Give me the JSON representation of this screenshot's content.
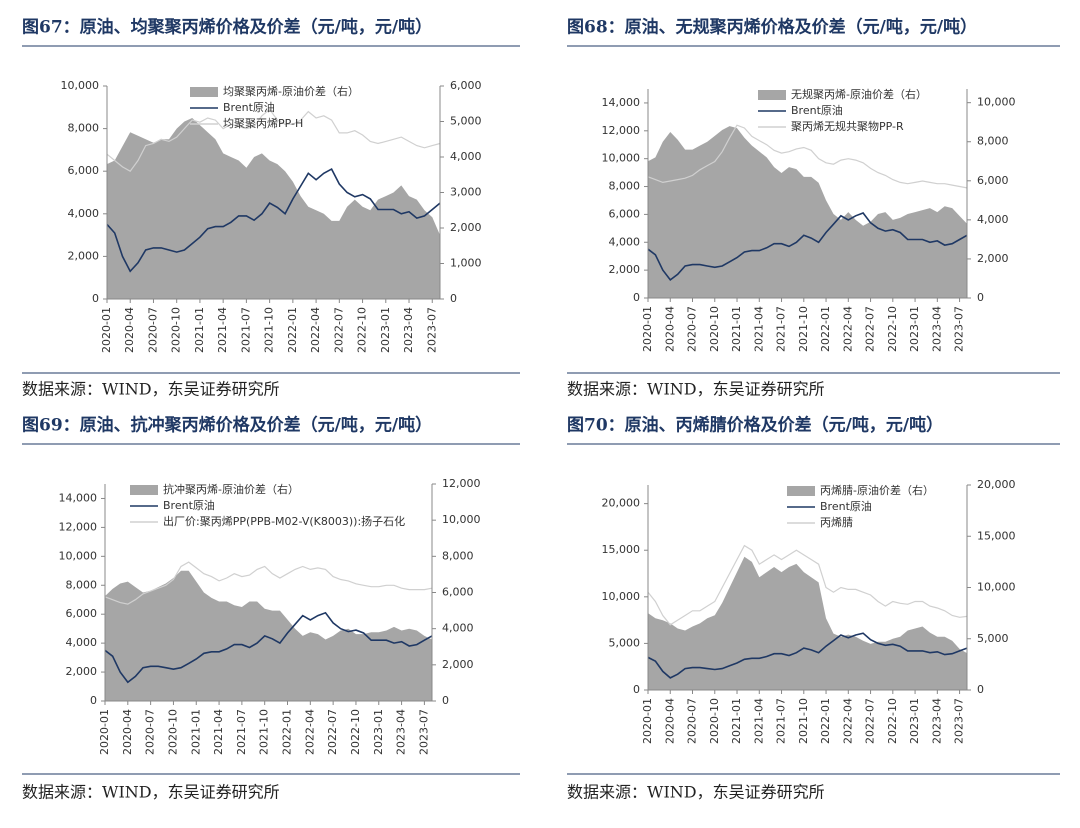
{
  "chart_data": [
    {
      "type": "combo",
      "title": "图67：原油、均聚聚丙烯价格及价差（元/吨，元/吨）",
      "source": "数据来源：WIND，东吴证券研究所",
      "legend": "upper left",
      "categories": [
        "2020-01",
        null,
        null,
        "2020-04",
        null,
        null,
        "2020-07",
        null,
        null,
        "2020-10",
        null,
        null,
        "2021-01",
        null,
        null,
        "2021-04",
        null,
        null,
        "2021-07",
        null,
        null,
        "2021-10",
        null,
        null,
        "2022-01",
        null,
        null,
        "2022-04",
        null,
        null,
        "2022-07",
        null,
        null,
        "2022-10",
        null,
        null,
        "2023-01",
        null,
        null,
        "2023-04",
        null,
        null,
        "2023-07",
        null
      ],
      "ylim": [
        0,
        10000
      ],
      "yticks": [
        0,
        {
          "value": 2000,
          "label": "2,000"
        },
        {
          "value": 4000,
          "label": "4,000"
        },
        {
          "value": 6000,
          "label": "6,000"
        },
        {
          "value": 8000,
          "label": "8,000"
        },
        {
          "value": 10000,
          "label": "10,000"
        }
      ],
      "y2lim": [
        0,
        6000
      ],
      "y2ticks": [
        0,
        {
          "value": 1000,
          "label": "1,000"
        },
        {
          "value": 2000,
          "label": "2,000"
        },
        {
          "value": 3000,
          "label": "3,000"
        },
        {
          "value": 4000,
          "label": "4,000"
        },
        {
          "value": 5000,
          "label": "5,000"
        },
        {
          "value": 6000,
          "label": "6,000"
        }
      ],
      "series": [
        {
          "name": "均聚聚丙烯-原油价差（右）",
          "style": "area",
          "axis": "y2",
          "color": "#a6a6a6",
          "values": [
            3800,
            3900,
            4300,
            4700,
            4600,
            4500,
            4400,
            4500,
            4500,
            4800,
            5000,
            5100,
            4900,
            4700,
            4500,
            4100,
            4000,
            3900,
            3700,
            4000,
            4100,
            3900,
            3800,
            3600,
            3300,
            2900,
            2600,
            2500,
            2400,
            2200,
            2200,
            2600,
            2800,
            2600,
            2500,
            2800,
            2900,
            3000,
            3200,
            2900,
            2800,
            2500,
            2300,
            1800
          ]
        },
        {
          "name": "Brent原油",
          "style": "line",
          "color": "#1f3864",
          "values": [
            3500,
            3100,
            2000,
            1300,
            1700,
            2300,
            2400,
            2400,
            2300,
            2200,
            2300,
            2600,
            2900,
            3300,
            3400,
            3400,
            3600,
            3900,
            3900,
            3700,
            4000,
            4500,
            4300,
            4000,
            4700,
            5300,
            5900,
            5600,
            5900,
            6100,
            5400,
            5000,
            4800,
            4900,
            4700,
            4200,
            4200,
            4200,
            4000,
            4100,
            3800,
            3900,
            4200,
            4500
          ]
        },
        {
          "name": "均聚聚丙烯PP-H",
          "style": "line",
          "color": "#d0d0d0",
          "values": [
            6800,
            6500,
            6200,
            6000,
            6500,
            7200,
            7300,
            7500,
            7400,
            7600,
            8000,
            8400,
            8300,
            8500,
            8400,
            8000,
            8200,
            8100,
            8000,
            8100,
            8600,
            8900,
            8400,
            8200,
            8200,
            8400,
            8800,
            8500,
            8600,
            8400,
            7800,
            7800,
            7900,
            7700,
            7400,
            7300,
            7400,
            7500,
            7600,
            7400,
            7200,
            7100,
            7200,
            7300
          ]
        }
      ]
    },
    {
      "type": "combo",
      "title": "图68：原油、无规聚丙烯价格及价差（元/吨，元/吨）",
      "source": "数据来源：WIND，东吴证券研究所",
      "legend": "upper left",
      "categories": [
        "2020-01",
        null,
        null,
        "2020-04",
        null,
        null,
        "2020-07",
        null,
        null,
        "2020-10",
        null,
        null,
        "2021-01",
        null,
        null,
        "2021-04",
        null,
        null,
        "2021-07",
        null,
        null,
        "2021-10",
        null,
        null,
        "2022-01",
        null,
        null,
        "2022-04",
        null,
        null,
        "2022-07",
        null,
        null,
        "2022-10",
        null,
        null,
        "2023-01",
        null,
        null,
        "2023-04",
        null,
        null,
        "2023-07",
        null
      ],
      "ylim": [
        0,
        15000
      ],
      "yticks": [
        0,
        {
          "value": 2000,
          "label": "2,000"
        },
        {
          "value": 4000,
          "label": "4,000"
        },
        {
          "value": 6000,
          "label": "6,000"
        },
        {
          "value": 8000,
          "label": "8,000"
        },
        {
          "value": 10000,
          "label": "10,000"
        },
        {
          "value": 12000,
          "label": "12,000"
        },
        {
          "value": 14000,
          "label": "14,000"
        }
      ],
      "y2lim": [
        0,
        10700
      ],
      "y2ticks": [
        0,
        {
          "value": 2000,
          "label": "2,000"
        },
        {
          "value": 4000,
          "label": "4,000"
        },
        {
          "value": 6000,
          "label": "6,000"
        },
        {
          "value": 8000,
          "label": "8,000"
        },
        {
          "value": 10000,
          "label": "10,000"
        }
      ],
      "series": [
        {
          "name": "无规聚丙烯-原油价差（右）",
          "style": "area",
          "axis": "y2",
          "color": "#a6a6a6",
          "values": [
            7000,
            7200,
            8000,
            8500,
            8100,
            7600,
            7600,
            7800,
            8000,
            8300,
            8600,
            8800,
            8700,
            8200,
            7800,
            7500,
            7200,
            6700,
            6400,
            6700,
            6600,
            6200,
            6200,
            5900,
            5000,
            4300,
            4000,
            4400,
            4000,
            3700,
            3900,
            4300,
            4400,
            4000,
            4100,
            4300,
            4400,
            4500,
            4600,
            4400,
            4700,
            4600,
            4200,
            3800
          ]
        },
        {
          "name": "Brent原油",
          "style": "line",
          "color": "#1f3864",
          "values": [
            3500,
            3100,
            2000,
            1300,
            1700,
            2300,
            2400,
            2400,
            2300,
            2200,
            2300,
            2600,
            2900,
            3300,
            3400,
            3400,
            3600,
            3900,
            3900,
            3700,
            4000,
            4500,
            4300,
            4000,
            4700,
            5300,
            5900,
            5600,
            5900,
            6100,
            5400,
            5000,
            4800,
            4900,
            4700,
            4200,
            4200,
            4200,
            4000,
            4100,
            3800,
            3900,
            4200,
            4500
          ]
        },
        {
          "name": "聚丙烯无规共聚物PP-R",
          "style": "line",
          "color": "#d0d0d0",
          "values": [
            8700,
            8500,
            8300,
            8400,
            8500,
            8600,
            8800,
            9200,
            9500,
            9800,
            10500,
            11500,
            12400,
            12200,
            11600,
            11300,
            11000,
            10600,
            10400,
            10500,
            10700,
            10800,
            10600,
            10000,
            9700,
            9600,
            9900,
            10000,
            9900,
            9700,
            9300,
            9000,
            8800,
            8500,
            8300,
            8200,
            8300,
            8400,
            8300,
            8200,
            8200,
            8100,
            8000,
            7900
          ]
        }
      ]
    },
    {
      "type": "combo",
      "title": "图69：原油、抗冲聚丙烯价格及价差（元/吨，元/吨）",
      "source": "数据来源：WIND，东吴证券研究所",
      "legend": "upper left",
      "categories": [
        "2020-01",
        null,
        null,
        "2020-04",
        null,
        null,
        "2020-07",
        null,
        null,
        "2020-10",
        null,
        null,
        "2021-01",
        null,
        null,
        "2021-04",
        null,
        null,
        "2021-07",
        null,
        null,
        "2021-10",
        null,
        null,
        "2022-01",
        null,
        null,
        "2022-04",
        null,
        null,
        "2022-07",
        null,
        null,
        "2022-10",
        null,
        null,
        "2023-01",
        null,
        null,
        "2023-04",
        null,
        null,
        "2023-07",
        null
      ],
      "ylim": [
        0,
        15000
      ],
      "yticks": [
        0,
        {
          "value": 2000,
          "label": "2,000"
        },
        {
          "value": 4000,
          "label": "4,000"
        },
        {
          "value": 6000,
          "label": "6,000"
        },
        {
          "value": 8000,
          "label": "8,000"
        },
        {
          "value": 10000,
          "label": "10,000"
        },
        {
          "value": 12000,
          "label": "12,000"
        },
        {
          "value": 14000,
          "label": "14,000"
        }
      ],
      "y2lim": [
        0,
        12000
      ],
      "y2ticks": [
        0,
        {
          "value": 2000,
          "label": "2,000"
        },
        {
          "value": 4000,
          "label": "4,000"
        },
        {
          "value": 6000,
          "label": "6,000"
        },
        {
          "value": 8000,
          "label": "8,000"
        },
        {
          "value": 10000,
          "label": "10,000"
        },
        {
          "value": 12000,
          "label": "12,000"
        }
      ],
      "series": [
        {
          "name": "抗冲聚丙烯-原油价差（右）",
          "style": "area",
          "axis": "y2",
          "color": "#a6a6a6",
          "values": [
            5800,
            6200,
            6500,
            6600,
            6300,
            6000,
            6100,
            6300,
            6500,
            6800,
            7200,
            7200,
            6600,
            6000,
            5700,
            5500,
            5500,
            5300,
            5200,
            5500,
            5500,
            5100,
            5000,
            5000,
            4500,
            4000,
            3600,
            3800,
            3700,
            3400,
            3600,
            3900,
            4000,
            3700,
            3700,
            3800,
            3800,
            3900,
            4100,
            3900,
            4000,
            3900,
            3600,
            3400
          ]
        },
        {
          "name": "Brent原油",
          "style": "line",
          "color": "#1f3864",
          "values": [
            3500,
            3100,
            2000,
            1300,
            1700,
            2300,
            2400,
            2400,
            2300,
            2200,
            2300,
            2600,
            2900,
            3300,
            3400,
            3400,
            3600,
            3900,
            3900,
            3700,
            4000,
            4500,
            4300,
            4000,
            4700,
            5300,
            5900,
            5600,
            5900,
            6100,
            5400,
            5000,
            4800,
            4900,
            4700,
            4200,
            4200,
            4200,
            4000,
            4100,
            3800,
            3900,
            4200,
            4500
          ]
        },
        {
          "name": "出厂价:聚丙烯PP(PPB-M02-V(K8003)):扬子石化",
          "style": "line",
          "color": "#d0d0d0",
          "values": [
            7200,
            7000,
            6800,
            6700,
            7000,
            7400,
            7600,
            7800,
            8000,
            8400,
            9300,
            9600,
            9200,
            8800,
            8600,
            8300,
            8500,
            8800,
            8600,
            8700,
            9100,
            9300,
            8800,
            8500,
            8800,
            9100,
            9300,
            9100,
            9200,
            9100,
            8600,
            8400,
            8300,
            8100,
            8000,
            7900,
            7900,
            8000,
            8000,
            7800,
            7700,
            7700,
            7700,
            7800
          ]
        }
      ]
    },
    {
      "type": "combo",
      "title": "图70：原油、丙烯腈价格及价差（元/吨，元/吨）",
      "source": "数据来源：WIND，东吴证券研究所",
      "legend": "upper left",
      "categories": [
        "2020-01",
        null,
        null,
        "2020-04",
        null,
        null,
        "2020-07",
        null,
        null,
        "2020-10",
        null,
        null,
        "2021-01",
        null,
        null,
        "2021-04",
        null,
        null,
        "2021-07",
        null,
        null,
        "2021-10",
        null,
        null,
        "2022-01",
        null,
        null,
        "2022-04",
        null,
        null,
        "2022-07",
        null,
        null,
        "2022-10",
        null,
        null,
        "2023-01",
        null,
        null,
        "2023-04",
        null,
        null,
        "2023-07",
        null
      ],
      "ylim": [
        0,
        22000
      ],
      "yticks": [
        0,
        {
          "value": 5000,
          "label": "5,000"
        },
        {
          "value": 10000,
          "label": "10,000"
        },
        {
          "value": 15000,
          "label": "15,000"
        },
        {
          "value": 20000,
          "label": "20,000"
        }
      ],
      "y2lim": [
        0,
        20000
      ],
      "y2ticks": [
        0,
        {
          "value": 5000,
          "label": "5,000"
        },
        {
          "value": 10000,
          "label": "10,000"
        },
        {
          "value": 15000,
          "label": "15,000"
        },
        {
          "value": 20000,
          "label": "20,000"
        }
      ],
      "series": [
        {
          "name": "丙烯腈-原油价差（右）",
          "style": "area",
          "axis": "y2",
          "color": "#a6a6a6",
          "values": [
            7500,
            7000,
            6800,
            6500,
            6000,
            5800,
            6200,
            6500,
            7000,
            7300,
            8500,
            10000,
            11500,
            13000,
            12500,
            11000,
            11500,
            12000,
            11500,
            12000,
            12300,
            11500,
            11000,
            10500,
            7000,
            5500,
            5200,
            5400,
            5200,
            4800,
            4500,
            4700,
            4700,
            5000,
            5200,
            5800,
            6000,
            6200,
            5600,
            5200,
            5200,
            4800,
            4000,
            3600
          ]
        },
        {
          "name": "Brent原油",
          "style": "line",
          "color": "#1f3864",
          "values": [
            3500,
            3100,
            2000,
            1300,
            1700,
            2300,
            2400,
            2400,
            2300,
            2200,
            2300,
            2600,
            2900,
            3300,
            3400,
            3400,
            3600,
            3900,
            3900,
            3700,
            4000,
            4500,
            4300,
            4000,
            4700,
            5300,
            5900,
            5600,
            5900,
            6100,
            5400,
            5000,
            4800,
            4900,
            4700,
            4200,
            4200,
            4200,
            4000,
            4100,
            3800,
            3900,
            4200,
            4500
          ]
        },
        {
          "name": "丙烯腈",
          "style": "line",
          "color": "#d0d0d0",
          "values": [
            10500,
            9500,
            8000,
            7000,
            7500,
            8000,
            8500,
            8500,
            9000,
            9500,
            11000,
            12500,
            14000,
            15500,
            15000,
            13500,
            14000,
            14500,
            14000,
            14500,
            15000,
            14500,
            14000,
            13500,
            11000,
            10500,
            11000,
            10800,
            10800,
            10500,
            10200,
            9500,
            9000,
            9500,
            9300,
            9200,
            9500,
            9500,
            9000,
            8800,
            8500,
            8000,
            7800,
            7900
          ]
        }
      ]
    }
  ]
}
